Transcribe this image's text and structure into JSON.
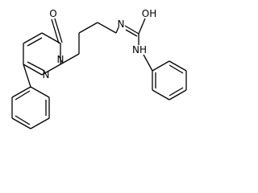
{
  "atoms": [
    {
      "label": "O"
    },
    {
      "label": "N"
    },
    {
      "label": "N"
    },
    {
      "label": "N"
    },
    {
      "label": "OH"
    },
    {
      "label": "NH"
    }
  ]
}
